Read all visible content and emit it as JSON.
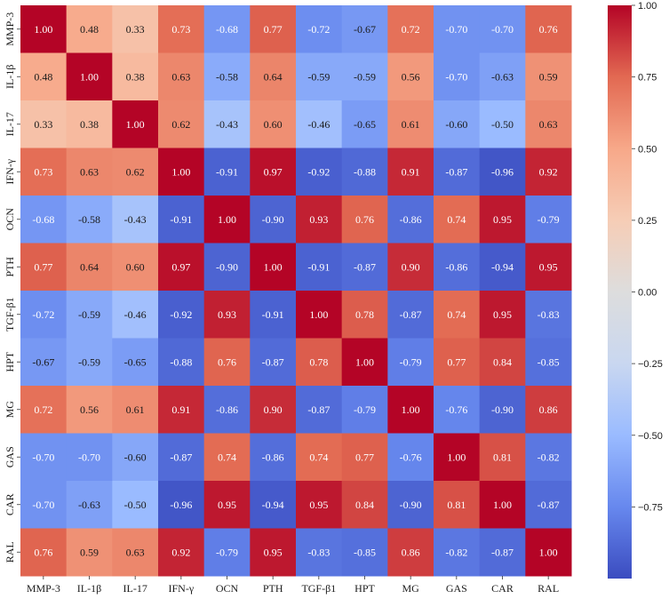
{
  "chart_data": {
    "type": "heatmap",
    "title": "",
    "xlabel": "",
    "ylabel": "",
    "labels": [
      "MMP-3",
      "IL-1β",
      "IL-17",
      "IFN-γ",
      "OCN",
      "PTH",
      "TGF-β1",
      "HPT",
      "MG",
      "GAS",
      "CAR",
      "RAL"
    ],
    "matrix": [
      [
        1.0,
        0.48,
        0.33,
        0.73,
        -0.68,
        0.77,
        -0.72,
        -0.67,
        0.72,
        -0.7,
        -0.7,
        0.76
      ],
      [
        0.48,
        1.0,
        0.38,
        0.63,
        -0.58,
        0.64,
        -0.59,
        -0.59,
        0.56,
        -0.7,
        -0.63,
        0.59
      ],
      [
        0.33,
        0.38,
        1.0,
        0.62,
        -0.43,
        0.6,
        -0.46,
        -0.65,
        0.61,
        -0.6,
        -0.5,
        0.63
      ],
      [
        0.73,
        0.63,
        0.62,
        1.0,
        -0.91,
        0.97,
        -0.92,
        -0.88,
        0.91,
        -0.87,
        -0.96,
        0.92
      ],
      [
        -0.68,
        -0.58,
        -0.43,
        -0.91,
        1.0,
        -0.9,
        0.93,
        0.76,
        -0.86,
        0.74,
        0.95,
        -0.79
      ],
      [
        0.77,
        0.64,
        0.6,
        0.97,
        -0.9,
        1.0,
        -0.91,
        -0.87,
        0.9,
        -0.86,
        -0.94,
        0.95
      ],
      [
        -0.72,
        -0.59,
        -0.46,
        -0.92,
        0.93,
        -0.91,
        1.0,
        0.78,
        -0.87,
        0.74,
        0.95,
        -0.83
      ],
      [
        -0.67,
        -0.59,
        -0.65,
        -0.88,
        0.76,
        -0.87,
        0.78,
        1.0,
        -0.79,
        0.77,
        0.84,
        -0.85
      ],
      [
        0.72,
        0.56,
        0.61,
        0.91,
        -0.86,
        0.9,
        -0.87,
        -0.79,
        1.0,
        -0.76,
        -0.9,
        0.86
      ],
      [
        -0.7,
        -0.7,
        -0.6,
        -0.87,
        0.74,
        -0.86,
        0.74,
        0.77,
        -0.76,
        1.0,
        0.81,
        -0.82
      ],
      [
        -0.7,
        -0.63,
        -0.5,
        -0.96,
        0.95,
        -0.94,
        0.95,
        0.84,
        -0.9,
        0.81,
        1.0,
        -0.87
      ],
      [
        0.76,
        0.59,
        0.63,
        0.92,
        -0.79,
        0.95,
        -0.83,
        -0.85,
        0.86,
        -0.82,
        -0.87,
        1.0
      ]
    ],
    "value_format": "2 decimals",
    "colormap": "coolwarm",
    "vmin": -1.0,
    "vmax": 1.0,
    "colorbar_ticks": [
      1.0,
      0.75,
      0.5,
      0.25,
      0.0,
      -0.25,
      -0.5,
      -0.75
    ],
    "colorbar_tick_labels": [
      "1.00",
      "0.75",
      "0.50",
      "0.25",
      "0.00",
      "−0.25",
      "−0.50",
      "−0.75"
    ],
    "colorbar_placement": "right",
    "cmap_stops": [
      "#3b4cc0",
      "#6788ee",
      "#9abbff",
      "#c9d7f0",
      "#dddddd",
      "#f6cdb6",
      "#f7a889",
      "#e26952",
      "#b40426"
    ]
  }
}
